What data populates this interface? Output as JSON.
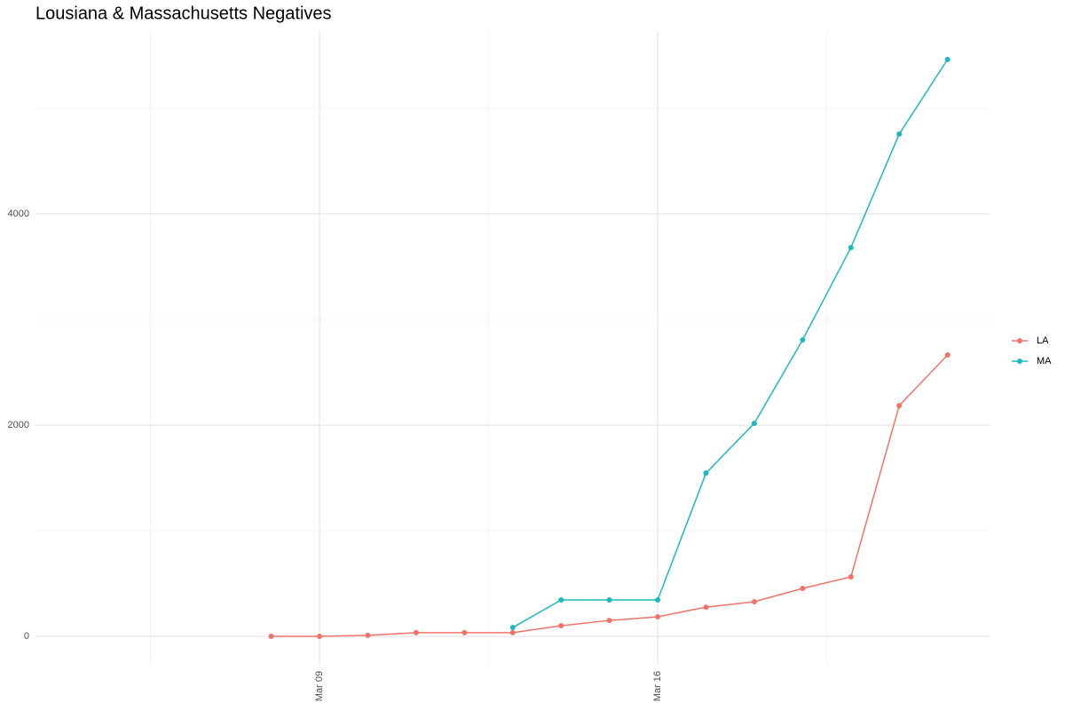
{
  "chart_data": {
    "type": "line",
    "title": "Lousiana & Massachusetts Negatives",
    "x": [
      8,
      9,
      10,
      11,
      12,
      13,
      14,
      15,
      16,
      17,
      18,
      19,
      20,
      21,
      22
    ],
    "series": [
      {
        "name": "LA",
        "color": "#f0736a",
        "values": [
          0,
          0,
          10,
          35,
          35,
          35,
          101,
          151,
          185,
          277,
          328,
          454,
          563,
          2185,
          2664
        ]
      },
      {
        "name": "MA",
        "color": "#1fb8be",
        "values": [
          null,
          null,
          null,
          null,
          null,
          84,
          345,
          345,
          345,
          1546,
          2017,
          2807,
          3681,
          4756,
          5462
        ]
      }
    ],
    "xlim": [
      3.12,
      22.87
    ],
    "xticks": [
      {
        "value": 9,
        "label": "Mar 09"
      },
      {
        "value": 16,
        "label": "Mar 16"
      }
    ],
    "ylim": [
      -277,
      5731
    ],
    "yticks": [
      0,
      2000,
      4000
    ],
    "grid": true,
    "legend": "right"
  }
}
